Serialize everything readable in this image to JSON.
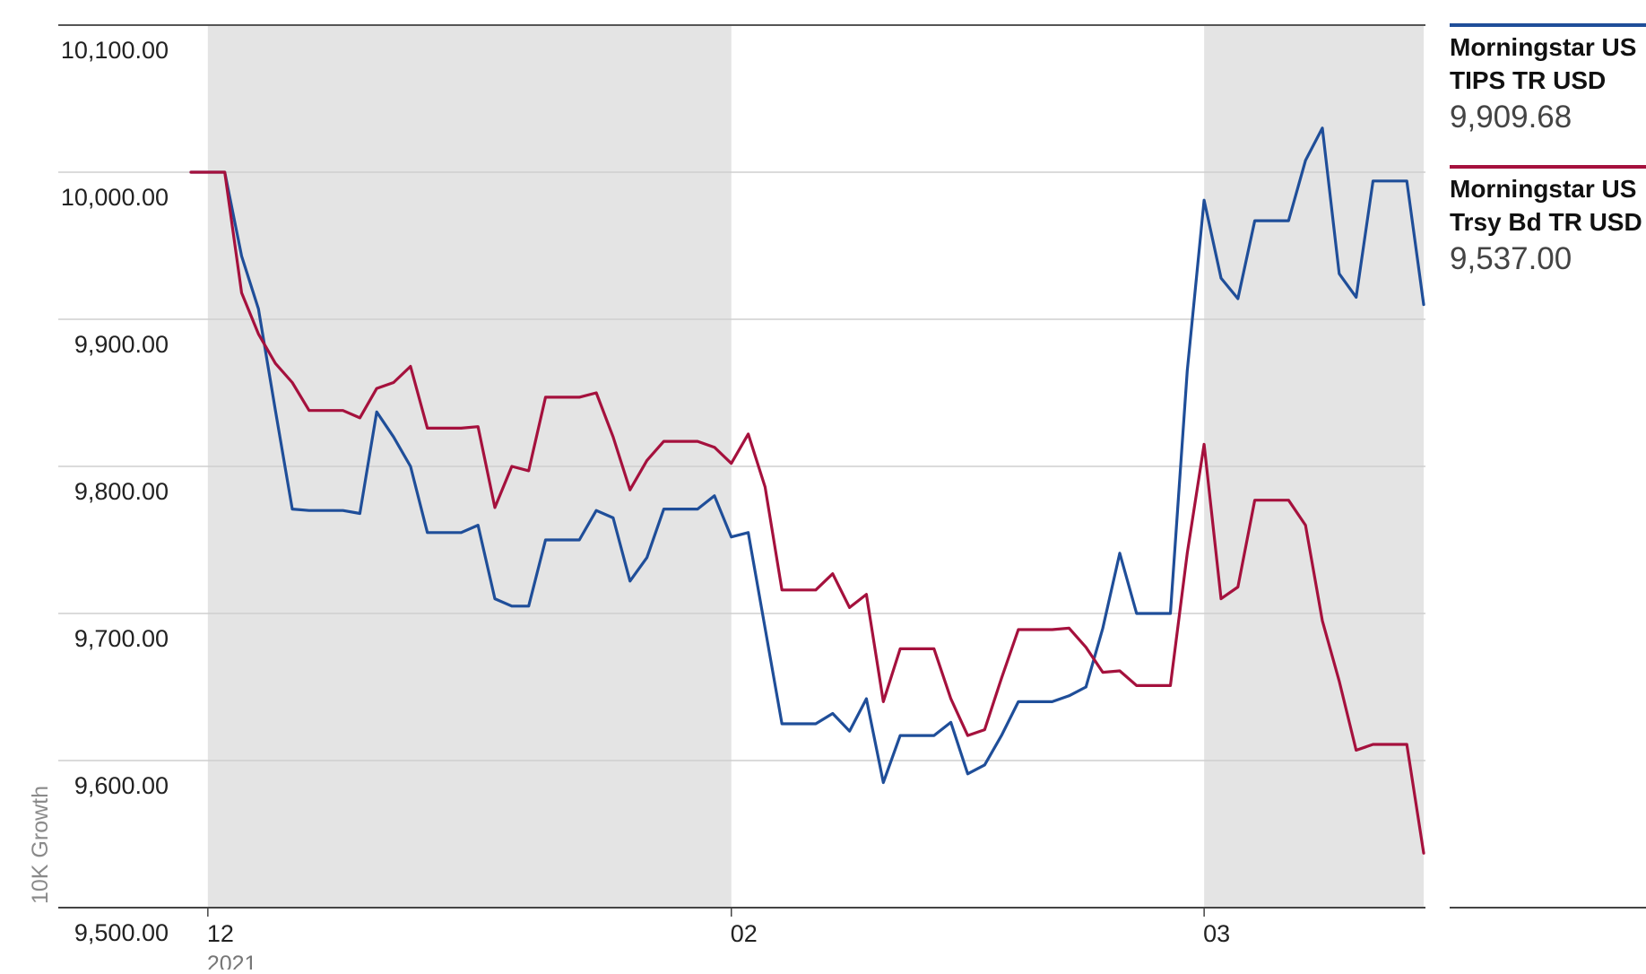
{
  "chart_data": {
    "type": "line",
    "title": "",
    "xlabel": "",
    "ylabel": "10K Growth",
    "ylim": [
      9500,
      10100
    ],
    "y_ticks": [
      "10,100.00",
      "10,000.00",
      "9,900.00",
      "9,800.00",
      "9,700.00",
      "9,600.00",
      "9,500.00"
    ],
    "y_tick_values": [
      10100,
      10000,
      9900,
      9800,
      9700,
      9600,
      9500
    ],
    "x_ticks": [
      {
        "label": "12",
        "sublabel": "2021",
        "index": 1
      },
      {
        "label": "02",
        "sublabel": "",
        "index": 32
      },
      {
        "label": "03",
        "sublabel": "",
        "index": 60
      }
    ],
    "shaded_ranges": [
      [
        1,
        32
      ],
      [
        60,
        73
      ]
    ],
    "grid": true,
    "legend_position": "right",
    "series": [
      {
        "name": "Morningstar US TIPS TR USD",
        "name_lines": [
          "Morningstar US",
          "TIPS TR USD"
        ],
        "last_value": "9,909.68",
        "color": "#1f4e99",
        "values": [
          10000,
          10000,
          10000,
          9943,
          9907,
          9838,
          9771,
          9770,
          9770,
          9770,
          9768,
          9837,
          9820,
          9800,
          9755,
          9755,
          9755,
          9760,
          9710,
          9705,
          9705,
          9750,
          9750,
          9750,
          9770,
          9765,
          9722,
          9738,
          9771,
          9771,
          9771,
          9780,
          9752,
          9755,
          9690,
          9625,
          9625,
          9625,
          9632,
          9620,
          9642,
          9585,
          9617,
          9617,
          9617,
          9626,
          9591,
          9597,
          9617,
          9640,
          9640,
          9640,
          9644,
          9650,
          9690,
          9741,
          9700,
          9700,
          9700,
          9865,
          9981,
          9928,
          9914,
          9967,
          9967,
          9967,
          10008,
          10030,
          9931,
          9915,
          9994,
          9994,
          9994,
          9910
        ]
      },
      {
        "name": "Morningstar US Trsy Bd TR USD",
        "name_lines": [
          "Morningstar US",
          "Trsy Bd TR USD"
        ],
        "last_value": "9,537.00",
        "color": "#a5113d",
        "values": [
          10000,
          10000,
          10000,
          9918,
          9890,
          9870,
          9857,
          9838,
          9838,
          9838,
          9833,
          9853,
          9857,
          9868,
          9826,
          9826,
          9826,
          9827,
          9772,
          9800,
          9797,
          9847,
          9847,
          9847,
          9850,
          9820,
          9784,
          9804,
          9817,
          9817,
          9817,
          9813,
          9802,
          9822,
          9786,
          9716,
          9716,
          9716,
          9727,
          9704,
          9713,
          9640,
          9676,
          9676,
          9676,
          9642,
          9617,
          9621,
          9656,
          9689,
          9689,
          9689,
          9690,
          9677,
          9660,
          9661,
          9651,
          9651,
          9651,
          9741,
          9815,
          9710,
          9718,
          9777,
          9777,
          9777,
          9760,
          9695,
          9654,
          9607,
          9611,
          9611,
          9611,
          9537
        ]
      }
    ]
  }
}
